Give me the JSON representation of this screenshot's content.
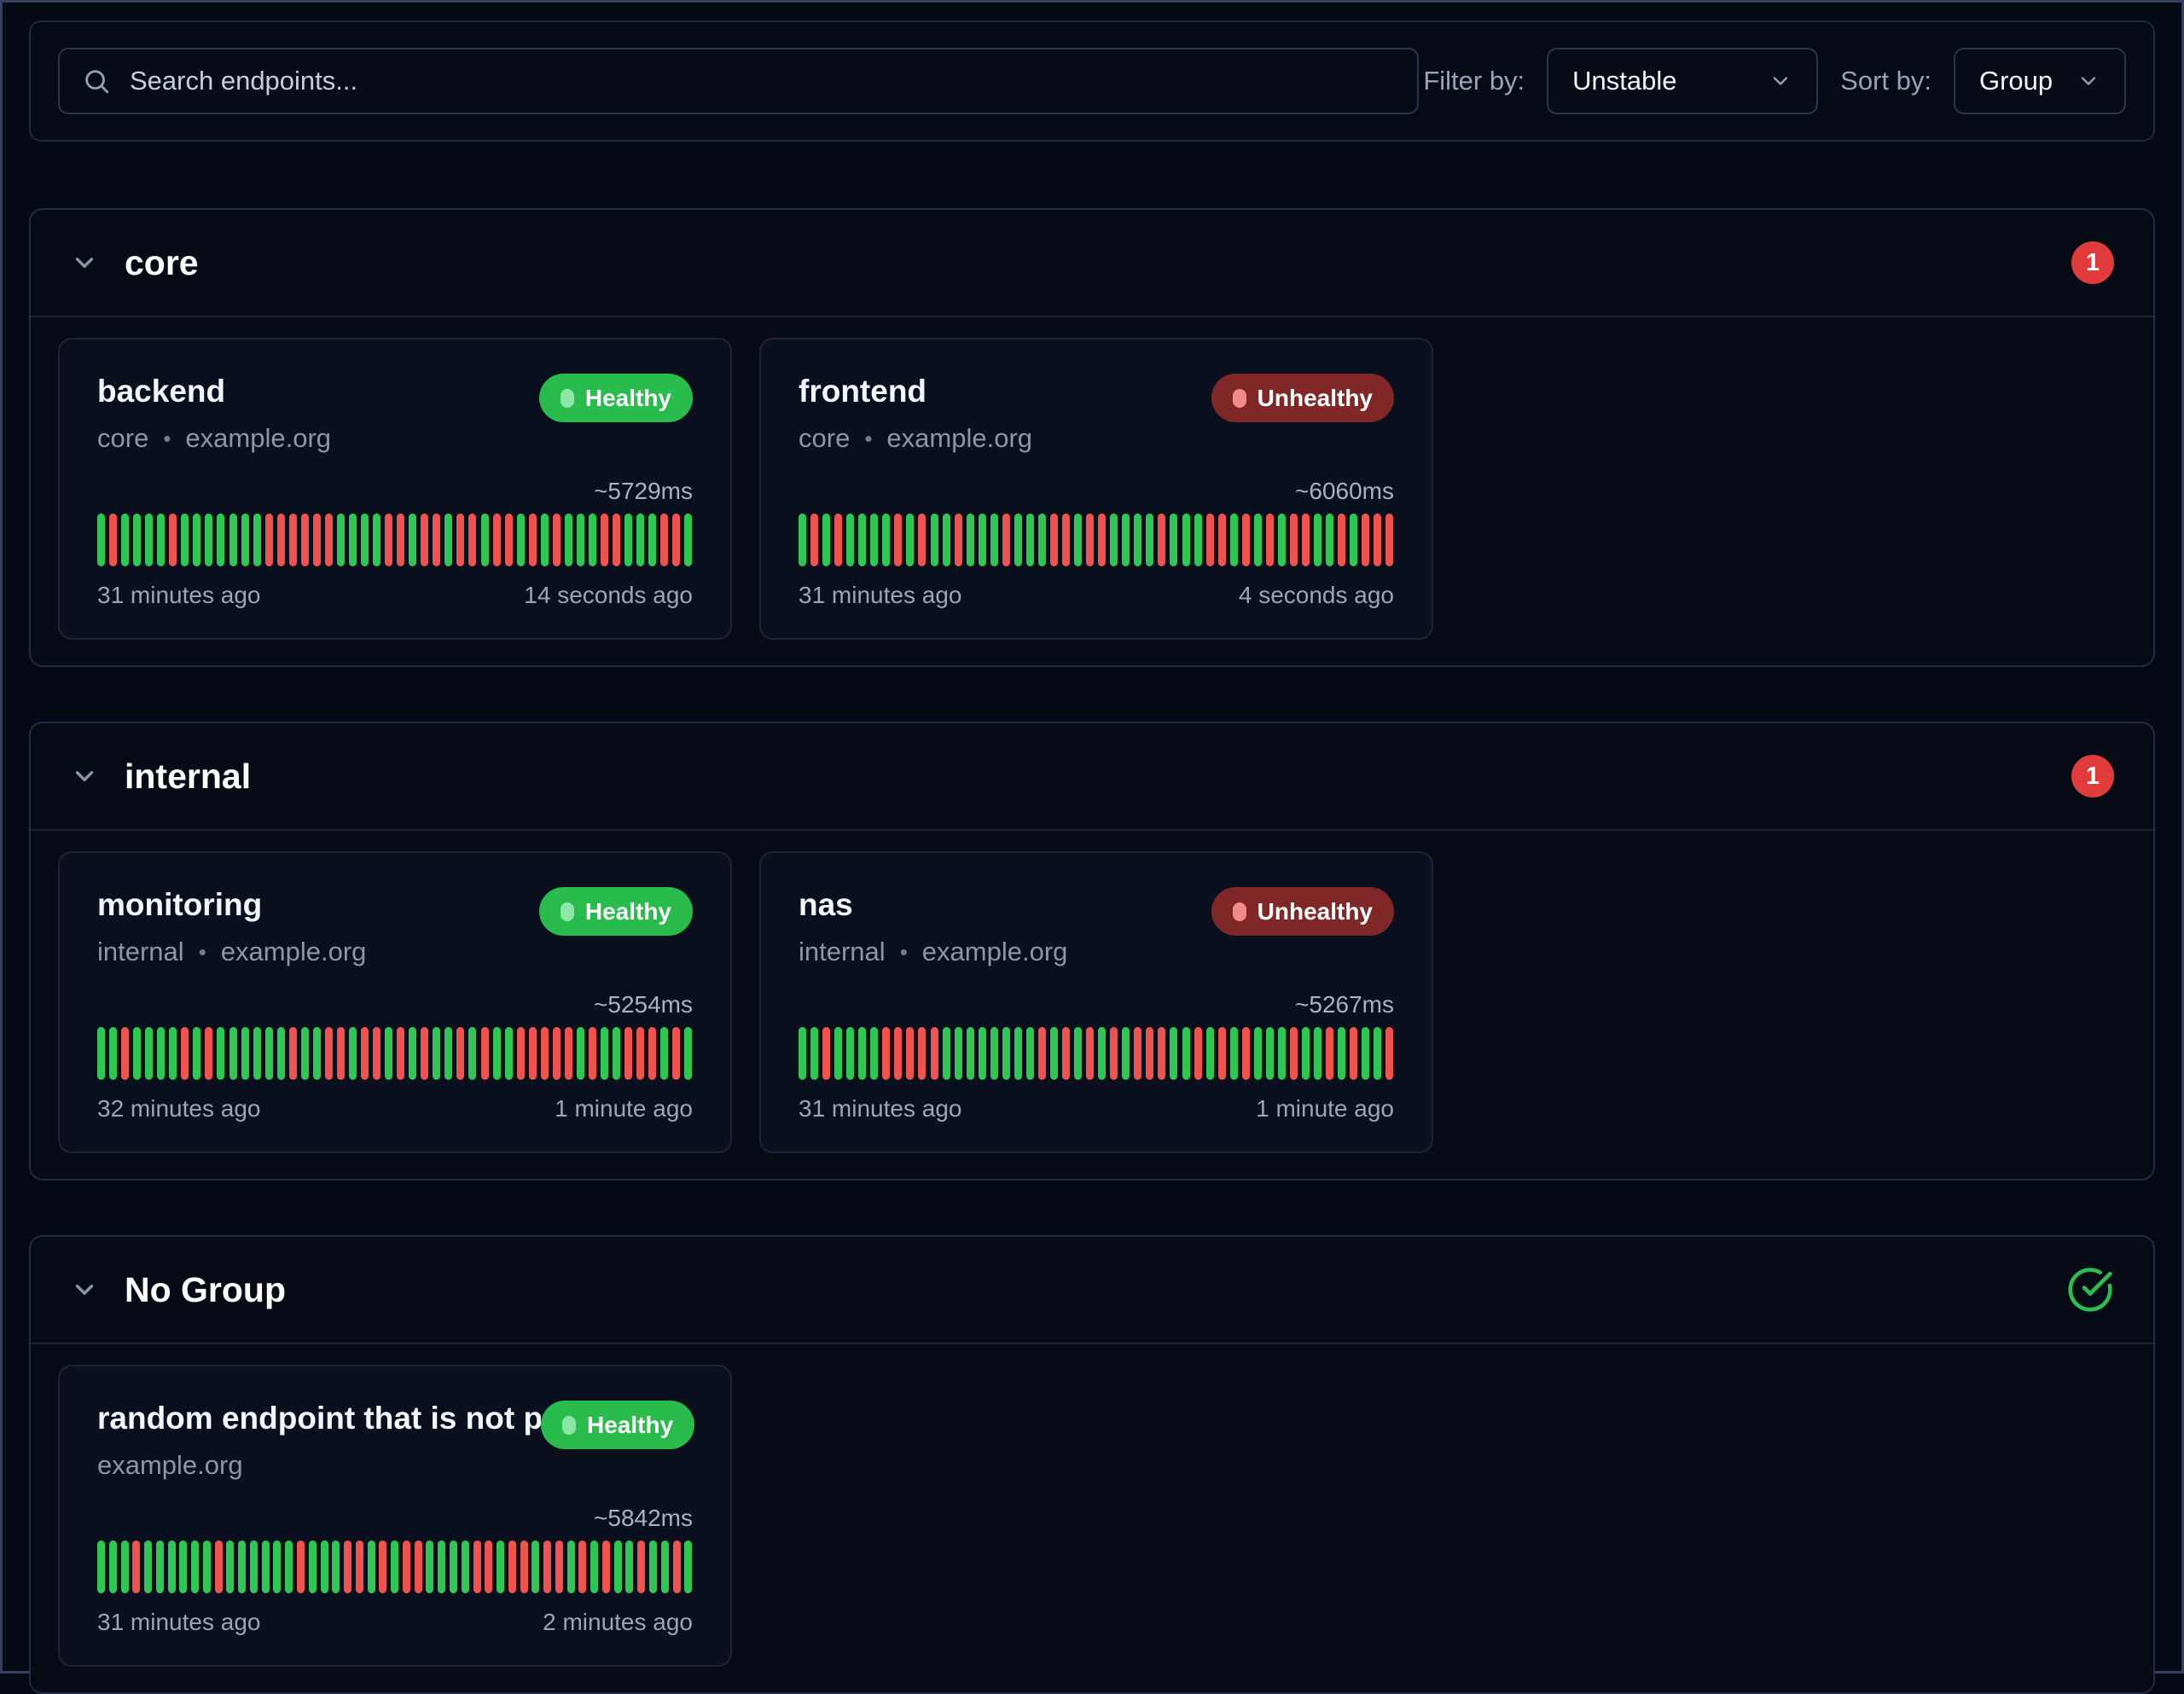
{
  "toolbar": {
    "search_placeholder": "Search endpoints...",
    "filter_label": "Filter by:",
    "filter_value": "Unstable",
    "sort_label": "Sort by:",
    "sort_value": "Group"
  },
  "subtitle_separator": "•",
  "colors": {
    "page_background": "#060a14",
    "healthy_badge": "#2abb4d",
    "unhealthy_badge": "#802828",
    "bar_success": "#2fc654",
    "bar_failure": "#ee5350",
    "unhealthy_count_badge": "#e23b3b",
    "all_healthy_check": "#2dbd4e"
  },
  "bar_legend": {
    "G": "success",
    "R": "failure"
  },
  "groups": [
    {
      "name": "core",
      "badge_type": "count",
      "unhealthy_count": "1",
      "endpoints": [
        {
          "name": "backend",
          "group": "core",
          "host": "example.org",
          "status": "Healthy",
          "status_type": "healthy",
          "response_time": "~5729ms",
          "from": "31 minutes ago",
          "to": "14 seconds ago",
          "bars": "GRGGGGRGGGGGGGRRRRRRGGGGRRGRRGRRGRRGRGRGGGRRGGGRRG"
        },
        {
          "name": "frontend",
          "group": "core",
          "host": "example.org",
          "status": "Unhealthy",
          "status_type": "unhealthy",
          "response_time": "~6060ms",
          "from": "31 minutes ago",
          "to": "4 seconds ago",
          "bars": "GRGRGGGGRGRGGRGGGRGGGRRGRRGGGGRGGGRRGRGRGRRGGRGRRR"
        }
      ]
    },
    {
      "name": "internal",
      "badge_type": "count",
      "unhealthy_count": "1",
      "endpoints": [
        {
          "name": "monitoring",
          "group": "internal",
          "host": "example.org",
          "status": "Healthy",
          "status_type": "healthy",
          "response_time": "~5254ms",
          "from": "32 minutes ago",
          "to": "1 minute ago",
          "bars": "GGRGGGGRGRGGGGGGRGGRRGRRGRGRGGRGRGGRRRRRGRGGRRRGRG"
        },
        {
          "name": "nas",
          "group": "internal",
          "host": "example.org",
          "status": "Unhealthy",
          "status_type": "unhealthy",
          "response_time": "~5267ms",
          "from": "31 minutes ago",
          "to": "1 minute ago",
          "bars": "GGRGGGGRRRRRGGGGGGGGRGRGRGRGRRRGGRGRGRGGGRGGRGRGGR"
        }
      ]
    },
    {
      "name": "No Group",
      "badge_type": "check",
      "unhealthy_count": "",
      "endpoints": [
        {
          "name": "random endpoint that is not part...",
          "group": "",
          "host": "example.org",
          "status": "Healthy",
          "status_type": "healthy",
          "response_time": "~5842ms",
          "from": "31 minutes ago",
          "to": "2 minutes ago",
          "bars": "GGGRGGGGGGRGGGGGGRGGGRRGRGRRGGGGRRGRRGRRGRGRGGRGGRG"
        }
      ]
    }
  ]
}
